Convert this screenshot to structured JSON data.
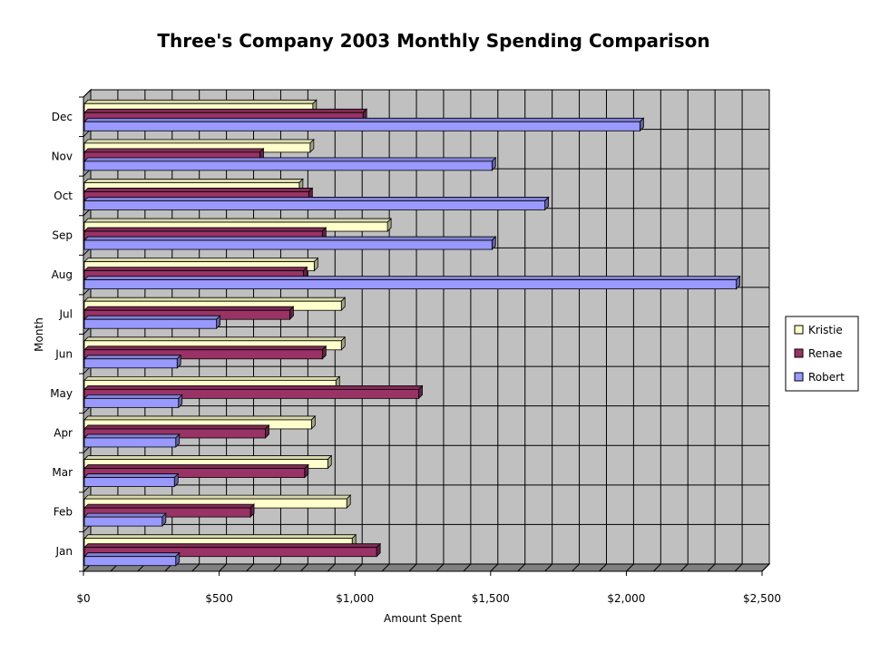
{
  "chart_data": {
    "type": "bar",
    "orientation": "horizontal",
    "style": "3d-clustered",
    "title": "Three's Company 2003 Monthly Spending Comparison",
    "xlabel": "Amount Spent",
    "ylabel": "Month",
    "xlim": [
      0,
      2500
    ],
    "xticks": [
      0,
      500,
      1000,
      1500,
      2000,
      2500
    ],
    "xtick_labels": [
      "$0",
      "$500",
      "$1,000",
      "$1,500",
      "$2,000",
      "$2,500"
    ],
    "categories": [
      "Jan",
      "Feb",
      "Mar",
      "Apr",
      "May",
      "Jun",
      "Jul",
      "Aug",
      "Sep",
      "Oct",
      "Nov",
      "Dec"
    ],
    "series": [
      {
        "name": "Kristie",
        "color": "#ffffcc",
        "values": [
          990,
          970,
          900,
          840,
          930,
          950,
          950,
          850,
          1120,
          795,
          835,
          845
        ]
      },
      {
        "name": "Renae",
        "color": "#993366",
        "values": [
          1080,
          615,
          815,
          670,
          1235,
          880,
          760,
          810,
          880,
          830,
          650,
          1030
        ]
      },
      {
        "name": "Robert",
        "color": "#9999ff",
        "values": [
          340,
          290,
          335,
          340,
          350,
          345,
          490,
          2405,
          1505,
          1700,
          1505,
          2050
        ]
      }
    ],
    "grid": true,
    "legend_position": "right",
    "plot_background": "#c0c0c0"
  }
}
